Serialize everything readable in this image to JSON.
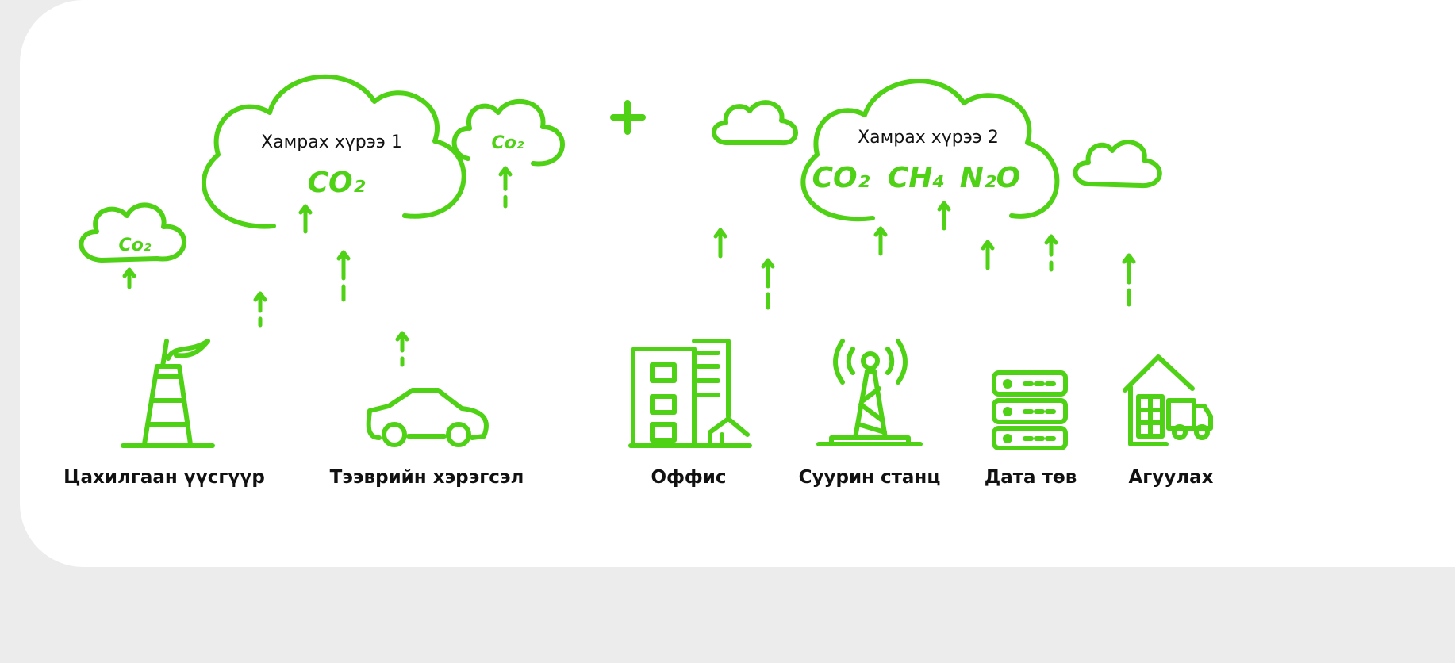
{
  "scope1": {
    "title": "Хамрах хүрээ 1",
    "gas": "CO₂"
  },
  "small_clouds": [
    "Co₂",
    "Co₂"
  ],
  "scope2": {
    "title": "Хамрах хүрээ 2",
    "gases": [
      "CO₂",
      "CH₄",
      "N₂O"
    ]
  },
  "sources": [
    "Цахилгаан үүсгүүр",
    "Тээврийн хэрэгсэл",
    "Оффис",
    "Суурин станц",
    "Дата төв",
    "Агуулах"
  ]
}
